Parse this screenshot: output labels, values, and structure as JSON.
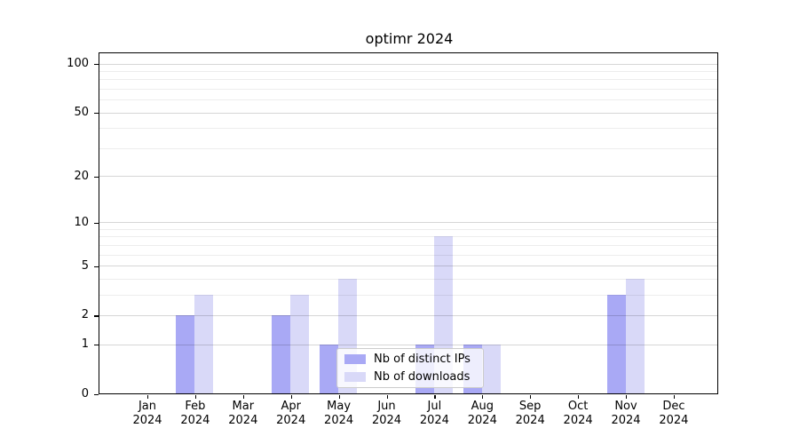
{
  "page": {
    "background": "#ffffff"
  },
  "chart_data": {
    "type": "bar",
    "title": "optimr 2024",
    "categories": [
      "Jan",
      "Feb",
      "Mar",
      "Apr",
      "May",
      "Jun",
      "Jul",
      "Aug",
      "Sep",
      "Oct",
      "Nov",
      "Dec"
    ],
    "x_tick_second_line": "2024",
    "series": [
      {
        "name": "Nb of distinct IPs",
        "color": "#a9a9f5",
        "values": [
          0,
          2,
          0,
          2,
          1,
          0,
          1,
          1,
          0,
          0,
          3,
          0
        ]
      },
      {
        "name": "Nb of downloads",
        "color": "#d9d9f8",
        "values": [
          0,
          3,
          0,
          3,
          4,
          0,
          8,
          1,
          0,
          0,
          4,
          0
        ]
      }
    ],
    "xlabel": "",
    "ylabel": "",
    "yscale": "log1p",
    "ylim": [
      0,
      115
    ],
    "yticks": [
      0,
      1,
      2,
      5,
      10,
      20,
      50,
      100
    ],
    "major_gridlines": [
      1,
      2,
      5,
      10,
      20,
      50,
      100
    ],
    "minor_gridlines": [
      3,
      4,
      6,
      7,
      8,
      9,
      30,
      40,
      60,
      70,
      80,
      90
    ],
    "grid": true,
    "legend_position": "lower center",
    "colors": {
      "axis": "#000000",
      "major_grid": "rgba(0,0,0,0.16)",
      "minor_grid": "rgba(0,0,0,0.07)",
      "legend_border": "#cccccc",
      "text": "#000000"
    }
  }
}
